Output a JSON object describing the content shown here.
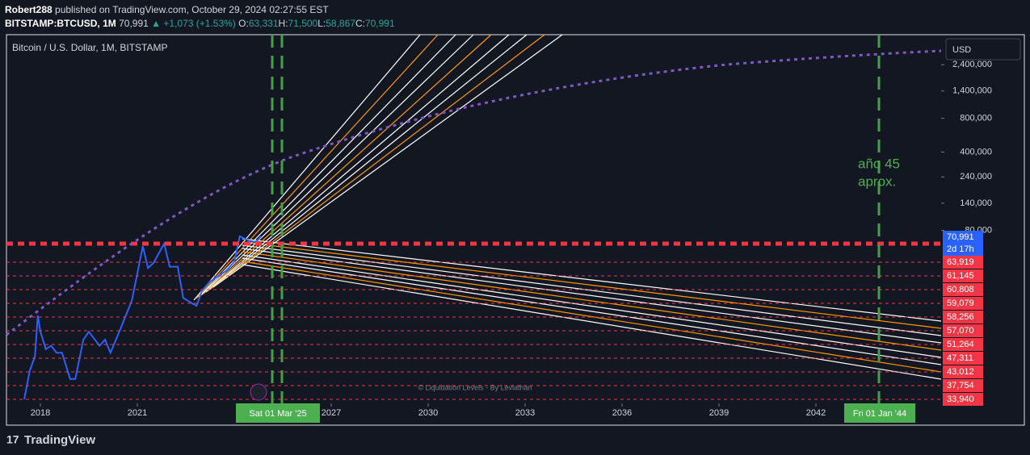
{
  "header": {
    "user": "Robert288",
    "published": "published on TradingView.com, October 29, 2024 02:27:55 EST",
    "symbol": "BITSTAMP:BTCUSD, 1M",
    "last": "70,991",
    "change": "+1,073 (+1.53%)",
    "ohlc": [
      {
        "key": "O:",
        "value": "63,331"
      },
      {
        "key": "H:",
        "value": "71,500"
      },
      {
        "key": "L:",
        "value": "58,867"
      },
      {
        "key": "C:",
        "value": "70,991"
      }
    ]
  },
  "chart_data": {
    "type": "line",
    "title": "Bitcoin / U.S. Dollar, 1M, BITSTAMP",
    "currency": "USD",
    "log_scale": true,
    "x": [
      2017.5,
      2017.67,
      2017.83,
      2017.92,
      2018.0,
      2018.17,
      2018.33,
      2018.5,
      2018.67,
      2018.92,
      2019.08,
      2019.33,
      2019.5,
      2019.83,
      2020.0,
      2020.17,
      2020.5,
      2020.83,
      2021.0,
      2021.17,
      2021.33,
      2021.5,
      2021.83,
      2022.0,
      2022.25,
      2022.42,
      2022.83,
      2023.0,
      2023.25,
      2023.75,
      2024.0,
      2024.17,
      2024.5,
      2024.67,
      2024.83
    ],
    "series": [
      {
        "color": "#2962ff",
        "values": [
          2500,
          4500,
          6000,
          14000,
          10000,
          7000,
          7500,
          6500,
          6500,
          3800,
          3800,
          8500,
          10000,
          7500,
          8500,
          6500,
          11000,
          19000,
          33000,
          58000,
          37000,
          41000,
          61000,
          38000,
          38000,
          20000,
          17000,
          23000,
          28000,
          35000,
          42000,
          71000,
          64000,
          63000,
          70991
        ]
      }
    ],
    "xlim": [
      2016.95,
      2045.875
    ],
    "xticks": [
      2018,
      2021,
      2027,
      2030,
      2033,
      2036,
      2039,
      2042
    ],
    "ylim": [
      2300,
      4300000
    ],
    "yticks": [
      {
        "value": 80000,
        "label": "80,000"
      },
      {
        "value": 140000,
        "label": "140,000"
      },
      {
        "value": 240000,
        "label": "240,000"
      },
      {
        "value": 400000,
        "label": "400,000"
      },
      {
        "value": 800000,
        "label": "800,000"
      },
      {
        "value": 1400000,
        "label": "1,400,000"
      },
      {
        "value": 2400000,
        "label": "2,400,000"
      }
    ],
    "last_price": {
      "label": "70,991",
      "countdown": "2d 17h"
    },
    "level_labels": [
      "63,919",
      "61,145",
      "60,808",
      "59,079",
      "58,256",
      "57,070",
      "51,264",
      "47,311",
      "43,012",
      "37,754",
      "33,940"
    ],
    "time_markers": [
      "Sat 01 Mar '25",
      "Fri 01 Jan '44"
    ],
    "annotation": [
      "año 45",
      "aprox."
    ],
    "watermark": "© Liquidation Levels - By Leviathan"
  },
  "footer": {
    "brand": "TradingView"
  }
}
